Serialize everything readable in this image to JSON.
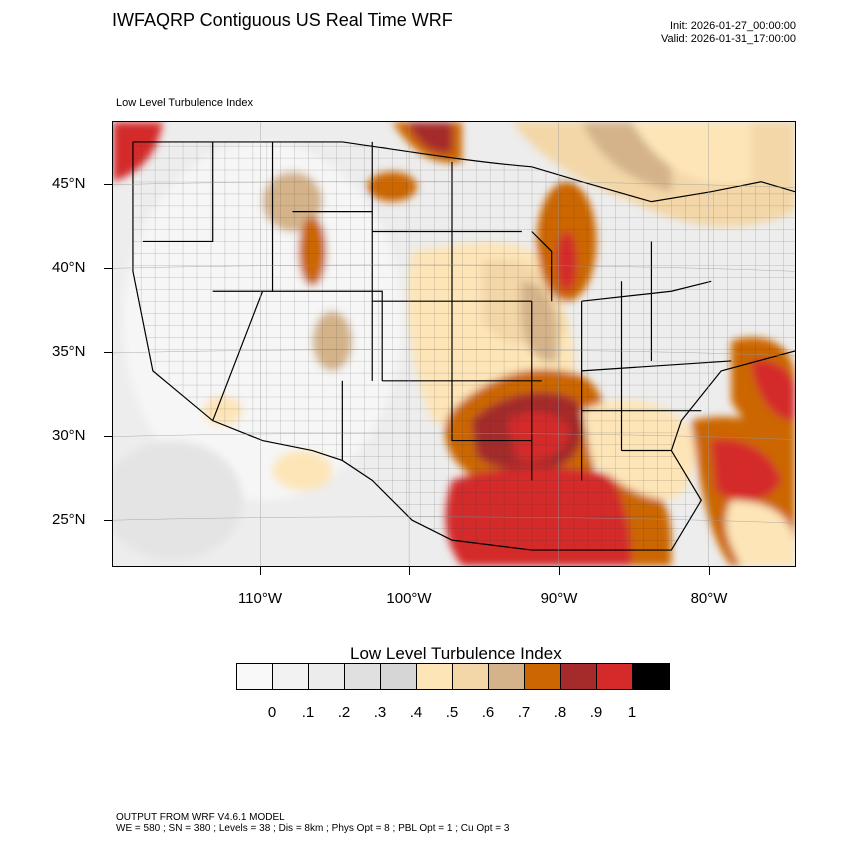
{
  "header": {
    "title": "IWFAQRP Contiguous US Real Time WRF",
    "init": "Init: 2026-01-27_00:00:00",
    "valid": "Valid: 2026-01-31_17:00:00"
  },
  "map": {
    "subtitle": "Low Level Turbulence Index",
    "lat_labels": [
      "45°N",
      "40°N",
      "35°N",
      "30°N",
      "25°N"
    ],
    "lon_labels": [
      "110°W",
      "100°W",
      "90°W",
      "80°W"
    ]
  },
  "legend": {
    "title": "Low Level Turbulence Index",
    "labels": [
      "0",
      ".1",
      ".2",
      ".3",
      ".4",
      ".5",
      ".6",
      ".7",
      ".8",
      ".9",
      "1"
    ],
    "colors": [
      "#f9f9f9",
      "#f2f2f2",
      "#ececec",
      "#e0e0e0",
      "#d6d6d6",
      "#fde5b8",
      "#f3d7a8",
      "#d4b38a",
      "#cc6600",
      "#a52a2a",
      "#d42a2a",
      "#000000"
    ]
  },
  "footer": {
    "line1": "OUTPUT FROM WRF V4.6.1 MODEL",
    "line2": "WE = 580 ; SN = 380 ; Levels = 38 ; Dis = 8km ; Phys Opt = 8 ; PBL Opt = 1 ; Cu Opt = 3"
  }
}
